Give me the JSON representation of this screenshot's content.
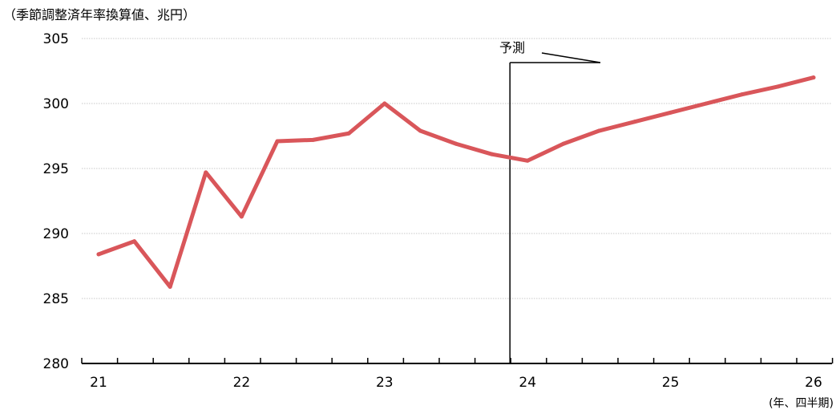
{
  "chart_data": {
    "type": "line",
    "ylabel": "（季節調整済年率換算値、兆円）",
    "xlabel": "(年、四半期)",
    "ylim": [
      280,
      305
    ],
    "yticks": [
      "280",
      "285",
      "290",
      "295",
      "300",
      "305"
    ],
    "xtick_labels": [
      "21",
      "22",
      "23",
      "24",
      "25",
      "26"
    ],
    "grid": true,
    "forecast_label": "予測",
    "forecast_start": "24Q1",
    "line_color": "#d9565a",
    "series": [
      {
        "x": [
          "21Q1",
          "21Q2",
          "21Q3",
          "21Q4",
          "22Q1",
          "22Q2",
          "22Q3",
          "22Q4",
          "23Q1",
          "23Q2",
          "23Q3",
          "23Q4",
          "24Q1",
          "24Q2",
          "24Q3",
          "24Q4",
          "25Q1",
          "25Q2",
          "25Q3",
          "25Q4",
          "26Q1"
        ],
        "values": [
          288.4,
          289.4,
          285.9,
          294.7,
          291.3,
          297.1,
          297.2,
          297.7,
          300.0,
          297.9,
          296.9,
          296.1,
          295.6,
          296.9,
          297.9,
          298.6,
          299.3,
          300.0,
          300.7,
          301.3,
          302.0
        ]
      }
    ]
  }
}
